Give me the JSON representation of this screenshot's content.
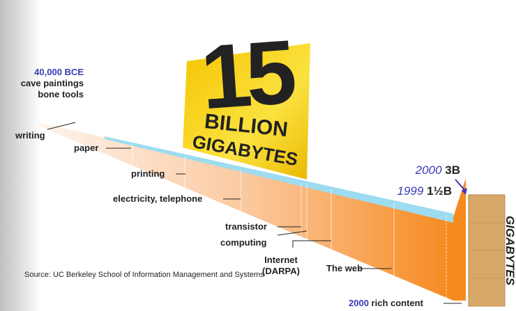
{
  "headline": {
    "number": "15",
    "line1": "BILLION",
    "line2": "GIGABYTES"
  },
  "origin": {
    "date": "40,000 BCE",
    "line1": "cave paintings",
    "line2": "bone tools"
  },
  "milestones": [
    "writing",
    "paper",
    "printing",
    "electricity, telephone",
    "transistor",
    "computing",
    "Internet",
    "(DARPA)",
    "The web"
  ],
  "totals": [
    {
      "year": "1999",
      "amount": "1½B"
    },
    {
      "year": "2000",
      "amount": "3B"
    }
  ],
  "end": {
    "year": "2000",
    "label": "rich content"
  },
  "axis_label": "GIGABYTES",
  "source": "Source: UC Berkeley School of Information Management and Systems"
}
